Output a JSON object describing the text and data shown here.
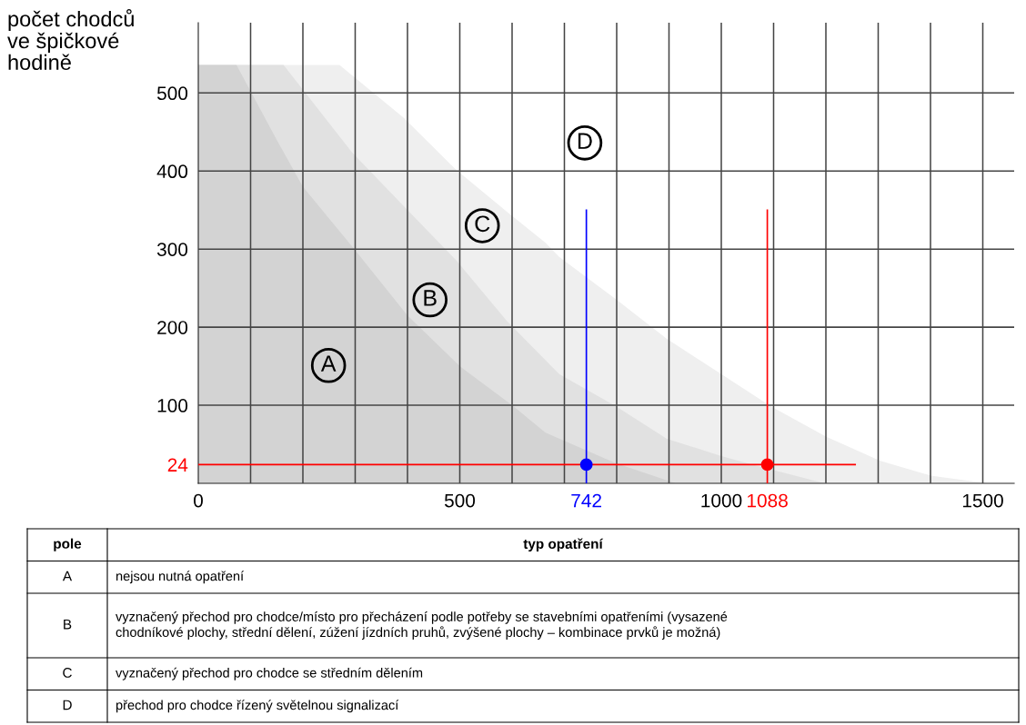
{
  "chart_data": {
    "type": "area",
    "ylabel": "počet chodců\nve špičkové\nhodině",
    "xlim": [
      0,
      1560
    ],
    "ylim": [
      0,
      590
    ],
    "xticks": [
      0,
      {
        "value": 100,
        "label": null
      },
      {
        "value": 200,
        "label": null
      },
      {
        "value": 300,
        "label": null
      },
      {
        "value": 400,
        "label": null
      },
      500,
      {
        "value": 600,
        "label": null
      },
      {
        "value": 700,
        "label": null
      },
      742,
      {
        "value": 800,
        "label": null
      },
      {
        "value": 900,
        "label": null
      },
      1000,
      1088,
      {
        "value": 1100,
        "label": null
      },
      {
        "value": 1200,
        "label": null
      },
      {
        "value": 1300,
        "label": null
      },
      {
        "value": 1400,
        "label": null
      },
      1500
    ],
    "yticks": [
      24,
      100,
      200,
      300,
      400,
      500
    ],
    "grid": true,
    "series": [
      {
        "color": "#efefef",
        "x": [
          0,
          270,
          393,
          494,
          590,
          664,
          690,
          800,
          896,
          1000,
          1094,
          1200,
          1303,
          1400,
          1487,
          1510
        ],
        "values": [
          536,
          536,
          468,
          401,
          348,
          308,
          290,
          235,
          185,
          140,
          99,
          60,
          29,
          10,
          2,
          0
        ]
      },
      {
        "color": "#e1e1e1",
        "x": [
          0,
          163,
          294,
          393,
          494,
          590,
          690,
          798,
          896,
          1000,
          1070,
          1186,
          1200
        ],
        "values": [
          536,
          536,
          424,
          355,
          285,
          208,
          140,
          99,
          57,
          35,
          22,
          2,
          0
        ]
      },
      {
        "color": "#d3d3d3",
        "x": [
          0,
          73,
          150,
          200,
          297,
          400,
          500,
          600,
          664,
          798,
          913
        ],
        "values": [
          536,
          536,
          440,
          380,
          301,
          215,
          150,
          100,
          65,
          26,
          0
        ]
      },
      {
        "type": "line",
        "color": "#0000ff",
        "x": [
          742,
          742
        ],
        "values": [
          0,
          350
        ]
      },
      {
        "type": "line",
        "color": "#ff0000",
        "x": [
          1088,
          1088
        ],
        "values": [
          0,
          350
        ]
      },
      {
        "type": "line",
        "color": "#ff0000",
        "x": [
          0,
          1256
        ],
        "values": [
          24,
          24
        ]
      },
      {
        "type": "scatter",
        "marker": "circle",
        "color": "#0000ff",
        "x": [
          742
        ],
        "values": [
          24
        ]
      },
      {
        "type": "scatter",
        "marker": "circle",
        "color": "#ff0000",
        "x": [
          1088
        ],
        "values": [
          24
        ]
      }
    ],
    "annotations": [
      {
        "text": "A",
        "x": 249,
        "y": 151
      },
      {
        "text": "B",
        "x": 443,
        "y": 235
      },
      {
        "text": "C",
        "x": 543,
        "y": 330
      },
      {
        "text": "D",
        "x": 739,
        "y": 436
      },
      "pole",
      "typ opatření",
      "A",
      "nejsou nutná opatření",
      "B",
      "vyznačený přechod pro chodce/místo pro přecházení podle potřeby se stavebními opatřeními (vysazené\nchodníkové plochy, střední dělení, zúžení jízdních pruhů, zvýšené plochy – kombinace prvků je možná)",
      "C",
      "vyznačený přechod pro chodce se středním dělením",
      "D",
      "přechod pro chodce řízený světelnou signalizací"
    ]
  }
}
